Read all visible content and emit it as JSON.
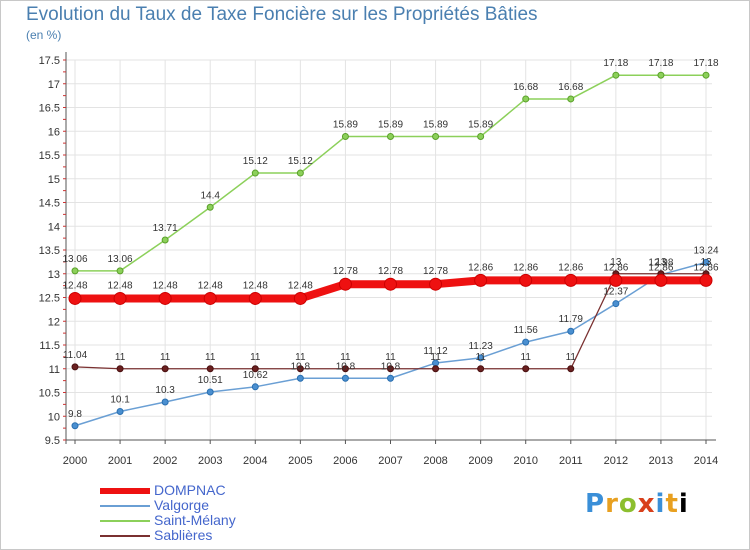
{
  "chart_data": {
    "type": "line",
    "title": "Evolution du Taux de Taxe Foncière sur les Propriétés Bâties",
    "subtitle": "(en %)",
    "xlabel": "",
    "ylabel": "",
    "ylim": [
      9.5,
      17.5
    ],
    "yticks": [
      "9.5",
      "10",
      "10.5",
      "11",
      "11.5",
      "12",
      "12.5",
      "13",
      "13.5",
      "14",
      "14.5",
      "15",
      "15.5",
      "16",
      "16.5",
      "17",
      "17.5"
    ],
    "x": [
      "2000",
      "2001",
      "2002",
      "2003",
      "2004",
      "2005",
      "2006",
      "2007",
      "2008",
      "2009",
      "2010",
      "2011",
      "2012",
      "2013",
      "2014"
    ],
    "grid": true,
    "legend": "bottom-left",
    "series": [
      {
        "name": "Saint-Mélany",
        "color": "#8cd05a",
        "values": [
          13.06,
          13.06,
          13.71,
          14.4,
          15.12,
          15.12,
          15.89,
          15.89,
          15.89,
          15.89,
          16.68,
          16.68,
          17.18,
          17.18,
          17.18
        ],
        "labels": [
          "13.06",
          "13.06",
          "13.71",
          "14.4",
          "15.12",
          "15.12",
          "15.89",
          "15.89",
          "15.89",
          "15.89",
          "16.68",
          "16.68",
          "17.18",
          "17.18",
          "17.18"
        ]
      },
      {
        "name": "Valgorge",
        "color": "#6a9fd4",
        "values": [
          9.8,
          10.1,
          10.3,
          10.51,
          10.62,
          10.8,
          10.8,
          10.8,
          11.12,
          11.23,
          11.56,
          11.79,
          12.37,
          12.98,
          13.24
        ],
        "labels": [
          "9.8",
          "10.1",
          "10.3",
          "10.51",
          "10.62",
          "10.8",
          "10.8",
          "10.8",
          "11.12",
          "11.23",
          "11.56",
          "11.79",
          "12.37",
          "12.98",
          "13.24"
        ]
      },
      {
        "name": "Sablières",
        "color": "#7a3030",
        "values": [
          11.04,
          11,
          11,
          11,
          11,
          11,
          11,
          11,
          11,
          11,
          11,
          11,
          13,
          13,
          13
        ],
        "labels": [
          "11.04",
          "11",
          "11",
          "11",
          "11",
          "11",
          "11",
          "11",
          "11",
          "11",
          "11",
          "11",
          "13",
          "13",
          "13"
        ]
      },
      {
        "name": "DOMPNAC",
        "color": "#ee1111",
        "values": [
          12.48,
          12.48,
          12.48,
          12.48,
          12.48,
          12.48,
          12.78,
          12.78,
          12.78,
          12.86,
          12.86,
          12.86,
          12.86,
          12.86,
          12.86
        ],
        "labels": [
          "12.48",
          "12.48",
          "12.48",
          "12.48",
          "12.48",
          "12.48",
          "12.78",
          "12.78",
          "12.78",
          "12.86",
          "12.86",
          "12.86",
          "12.86",
          "12.86",
          "12.86"
        ]
      }
    ]
  },
  "legend_items": [
    "DOMPNAC",
    "Valgorge",
    "Saint-Mélany",
    "Sablières"
  ],
  "logo_text": "Proxiti"
}
